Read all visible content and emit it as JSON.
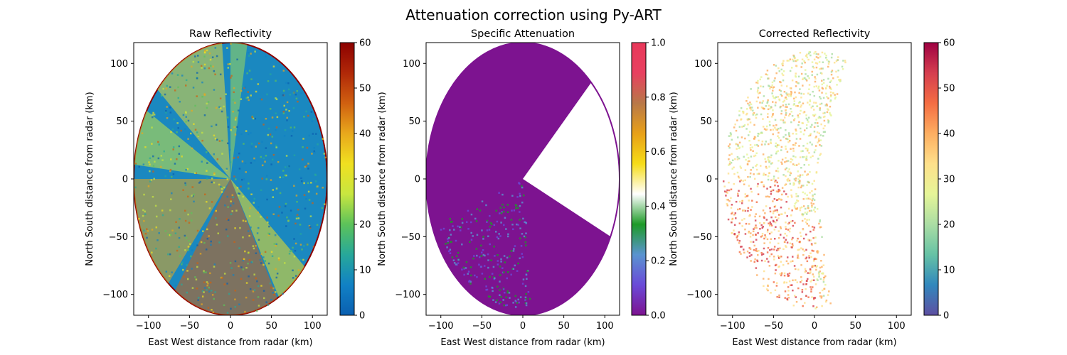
{
  "figure": {
    "title": "Attenuation correction using Py-ART"
  },
  "panels": [
    {
      "title": "Raw Reflectivity",
      "xlabel": "East West distance from radar (km)",
      "ylabel": "North South distance from radar (km)",
      "colorbar": {
        "min": 0,
        "max": 60,
        "ticks": [
          "0",
          "10",
          "20",
          "30",
          "40",
          "50",
          "60"
        ]
      }
    },
    {
      "title": "Specific Attenuation",
      "xlabel": "East West distance from radar (km)",
      "ylabel": "North South distance from radar (km)",
      "colorbar": {
        "min": 0.0,
        "max": 1.0,
        "ticks": [
          "0.0",
          "0.2",
          "0.4",
          "0.6",
          "0.8",
          "1.0"
        ]
      }
    },
    {
      "title": "Corrected Reflectivity",
      "xlabel": "East West distance from radar (km)",
      "ylabel": "North South distance from radar (km)",
      "colorbar": {
        "min": 0,
        "max": 60,
        "ticks": [
          "0",
          "10",
          "20",
          "30",
          "40",
          "50",
          "60"
        ]
      }
    }
  ],
  "chart_data": [
    {
      "type": "heatmap",
      "title": "Raw Reflectivity",
      "xlabel": "East West distance from radar (km)",
      "ylabel": "North South distance from radar (km)",
      "xlim": [
        -118,
        118
      ],
      "ylim": [
        -118,
        118
      ],
      "xticks": [
        "−100",
        "−50",
        "0",
        "50",
        "100"
      ],
      "yticks": [
        "−100",
        "−50",
        "0",
        "50",
        "100"
      ],
      "colormap": "pyart_HomeyerRainbow",
      "clim": [
        0,
        60
      ],
      "data_extent_km": 118
    },
    {
      "type": "heatmap",
      "title": "Specific Attenuation",
      "xlabel": "East West distance from radar (km)",
      "ylabel": "North South distance from radar (km)",
      "xlim": [
        -118,
        118
      ],
      "ylim": [
        -118,
        118
      ],
      "xticks": [
        "−100",
        "−50",
        "0",
        "50",
        "100"
      ],
      "yticks": [
        "−100",
        "−50",
        "0",
        "50",
        "100"
      ],
      "colormap": "pyart_Carbone17",
      "clim": [
        0.0,
        1.0
      ],
      "data_extent_km": 118
    },
    {
      "type": "heatmap",
      "title": "Corrected Reflectivity",
      "xlabel": "East West distance from radar (km)",
      "ylabel": "North South distance from radar (km)",
      "xlim": [
        -118,
        118
      ],
      "ylim": [
        -118,
        118
      ],
      "xticks": [
        "−100",
        "−50",
        "0",
        "50",
        "100"
      ],
      "yticks": [
        "−100",
        "−50",
        "0",
        "50",
        "100"
      ],
      "colormap": "Spectral_r",
      "clim": [
        0,
        60
      ],
      "data_extent_km": 118
    }
  ],
  "colormaps": {
    "reflectivity_raw": [
      "#0a5fb0",
      "#1181c5",
      "#27a89a",
      "#5cc25a",
      "#c8e640",
      "#f0e020",
      "#e8a81c",
      "#d06010",
      "#b02808",
      "#8c0000"
    ],
    "attenuation": [
      "#7d1390",
      "#6a4ad8",
      "#5a94d0",
      "#1e9a28",
      "#ffffff",
      "#f6dc18",
      "#e8a018",
      "#b87848",
      "#e84060",
      "#e8385a"
    ],
    "reflectivity_corr": [
      "#5e4fa2",
      "#3288bd",
      "#66c2a5",
      "#abdda4",
      "#e6f598",
      "#fee08b",
      "#fdae61",
      "#f46d43",
      "#d53e4f",
      "#9e0142"
    ]
  }
}
